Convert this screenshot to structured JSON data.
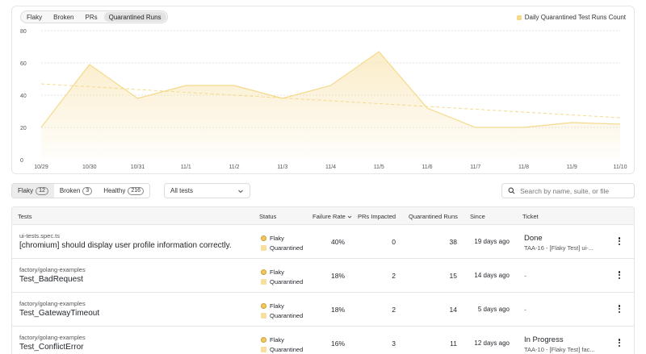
{
  "chart_tabs": [
    "Flaky",
    "Broken",
    "PRs",
    "Quarantined Runs"
  ],
  "active_chart_tab": 3,
  "colors": {
    "series": "#f5d98a",
    "series_fill": "#f9e6b6",
    "trend": "#f5d98a"
  },
  "chart_data": {
    "type": "area",
    "legend": "Daily Quarantined Test Runs Count",
    "legend_position": "top-right",
    "x": [
      "10/29",
      "10/30",
      "10/31",
      "11/1",
      "11/2",
      "11/3",
      "11/4",
      "11/5",
      "11/6",
      "11/7",
      "11/8",
      "11/9",
      "11/10"
    ],
    "series": [
      {
        "name": "Daily Quarantined Test Runs Count",
        "values": [
          20,
          59,
          38,
          46,
          46,
          38,
          46,
          67,
          32,
          20,
          20,
          23,
          22
        ]
      }
    ],
    "trendline": {
      "start": 47,
      "end": 26
    },
    "yticks": [
      0,
      20,
      40,
      60,
      80
    ],
    "ylim": [
      0,
      80
    ],
    "grid": true
  },
  "status_tabs": [
    {
      "label": "Flaky",
      "count": "12"
    },
    {
      "label": "Broken",
      "count": "3"
    },
    {
      "label": "Healthy",
      "count": "216"
    }
  ],
  "filter": {
    "value": "All tests"
  },
  "search": {
    "placeholder": "Search by name, suite, or file"
  },
  "columns": [
    "Tests",
    "Status",
    "Failure Rate",
    "PRs Impacted",
    "Quarantined Runs",
    "Since",
    "Ticket"
  ],
  "rows": [
    {
      "suite": "ui-tests.spec.ts",
      "name": "[chromium] should display user profile information correctly.",
      "status": "Flaky",
      "tag": "Quarantined",
      "rate": "40%",
      "prs": "0",
      "runs": "38",
      "since": "19 days ago",
      "ticket_status": "Done",
      "ticket_sub": "TAA-16 - [Flaky Test] ui-..."
    },
    {
      "suite": "factory/golang-examples",
      "name": "Test_BadRequest",
      "status": "Flaky",
      "tag": "Quarantined",
      "rate": "18%",
      "prs": "2",
      "runs": "15",
      "since": "14 days ago",
      "ticket_status": "",
      "ticket_sub": "",
      "ticket_dash": "-"
    },
    {
      "suite": "factory/golang-examples",
      "name": "Test_GatewayTimeout",
      "status": "Flaky",
      "tag": "Quarantined",
      "rate": "18%",
      "prs": "2",
      "runs": "14",
      "since": "5 days ago",
      "ticket_status": "",
      "ticket_sub": "",
      "ticket_dash": "-"
    },
    {
      "suite": "factory/golang-examples",
      "name": "Test_ConflictError",
      "status": "Flaky",
      "tag": "Quarantined",
      "rate": "16%",
      "prs": "3",
      "runs": "11",
      "since": "12 days ago",
      "ticket_status": "In Progress",
      "ticket_sub": "TAA-10 - [Flaky Test] fac..."
    }
  ]
}
